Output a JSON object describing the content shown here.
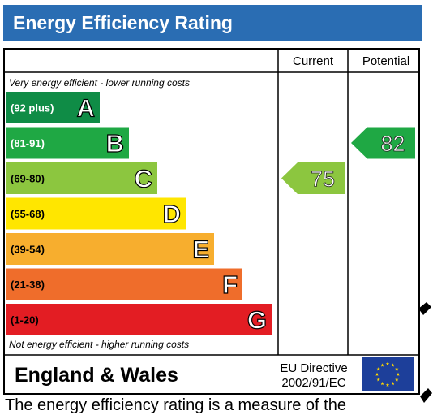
{
  "header": {
    "title": "Energy Efficiency Rating"
  },
  "chart_data": {
    "type": "bar",
    "columns": {
      "current": "Current",
      "potential": "Potential"
    },
    "top_note": "Very energy efficient - lower running costs",
    "bottom_note": "Not energy efficient - higher running costs",
    "bands": [
      {
        "letter": "A",
        "range": "(92 plus)",
        "color": "#0f8c46",
        "text_color": "#ffffff"
      },
      {
        "letter": "B",
        "range": "(81-91)",
        "color": "#1fa844",
        "text_color": "#ffffff"
      },
      {
        "letter": "C",
        "range": "(69-80)",
        "color": "#8cc63f",
        "text_color": "#000000"
      },
      {
        "letter": "D",
        "range": "(55-68)",
        "color": "#ffe600",
        "text_color": "#000000"
      },
      {
        "letter": "E",
        "range": "(39-54)",
        "color": "#f7ae2e",
        "text_color": "#000000"
      },
      {
        "letter": "F",
        "range": "(21-38)",
        "color": "#ef6d2b",
        "text_color": "#000000"
      },
      {
        "letter": "G",
        "range": "(1-20)",
        "color": "#e31d23",
        "text_color": "#000000"
      }
    ],
    "current": {
      "value": 75,
      "band": "C",
      "color": "#8cc63f"
    },
    "potential": {
      "value": 82,
      "band": "B",
      "color": "#1fa844"
    }
  },
  "footer": {
    "region": "England & Wales",
    "directive_line1": "EU Directive",
    "directive_line2": "2002/91/EC",
    "flag_color": "#1d3f9a",
    "star_color": "#ffd700",
    "truncated_text": "The energy efficiency rating is a measure of the"
  }
}
